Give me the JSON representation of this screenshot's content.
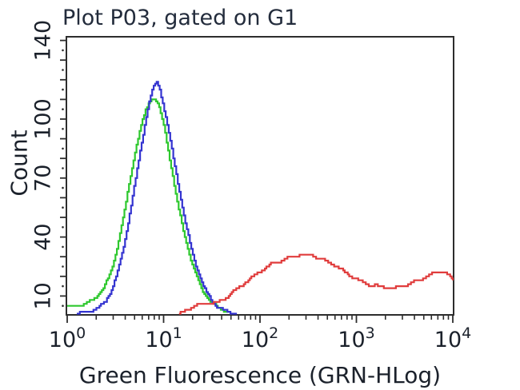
{
  "title": "Plot P03, gated on G1",
  "colors": {
    "background": "#ffffff",
    "axis": "#2d2d2d",
    "title_text": "#232c3c",
    "label_text": "#1b212b",
    "green_curve": "#2ec82e",
    "blue_curve": "#3434d0",
    "red_curve": "#e03c3c"
  },
  "axes": {
    "x": {
      "label": "Green Fluorescence (GRN-HLog)",
      "scale": "log10",
      "min": 1,
      "max": 10000,
      "major_ticks": [
        {
          "base": "10",
          "sup": "0",
          "exp": 0
        },
        {
          "base": "10",
          "sup": "1",
          "exp": 1
        },
        {
          "base": "10",
          "sup": "2",
          "exp": 2
        },
        {
          "base": "10",
          "sup": "3",
          "exp": 3
        },
        {
          "base": "10",
          "sup": "4",
          "exp": 4
        }
      ],
      "minor_tick_multiples": [
        2,
        3,
        4,
        5,
        6,
        7,
        8,
        9
      ]
    },
    "y": {
      "label": "Count",
      "scale": "linear",
      "min": 0,
      "max": 143,
      "labeled_ticks": [
        {
          "value": 10,
          "label": "10"
        },
        {
          "value": 40,
          "label": "40"
        },
        {
          "value": 70,
          "label": "70"
        },
        {
          "value": 100,
          "label": "100"
        },
        {
          "value": 140,
          "label": "140"
        }
      ],
      "minor_line_tick_step": 10,
      "minor_dot_tick_step": 5
    }
  },
  "chart_data": {
    "type": "line",
    "subtype": "flow-cytometry-histogram-overlay",
    "title": "Plot P03, gated on G1",
    "xlabel": "Green Fluorescence (GRN-HLog)",
    "ylabel": "Count",
    "x_scale": "log10",
    "x_range_log10": [
      0,
      4
    ],
    "ylim": [
      0,
      143
    ],
    "grid": false,
    "legend": "none",
    "point_format": "[log10_x, count]",
    "series": [
      {
        "name": "green-histogram",
        "color": "#2ec82e",
        "peak": {
          "x_approx": 8,
          "count": 111
        },
        "points": [
          [
            0.0,
            5
          ],
          [
            0.08,
            5
          ],
          [
            0.14,
            5.5
          ],
          [
            0.2,
            6.5
          ],
          [
            0.26,
            8
          ],
          [
            0.31,
            10
          ],
          [
            0.36,
            13
          ],
          [
            0.41,
            17.5
          ],
          [
            0.46,
            24
          ],
          [
            0.51,
            33
          ],
          [
            0.56,
            45
          ],
          [
            0.61,
            58
          ],
          [
            0.66,
            72
          ],
          [
            0.71,
            85
          ],
          [
            0.76,
            96
          ],
          [
            0.81,
            104
          ],
          [
            0.855,
            109
          ],
          [
            0.895,
            111
          ],
          [
            0.935,
            108
          ],
          [
            0.975,
            102
          ],
          [
            1.015,
            93
          ],
          [
            1.055,
            82
          ],
          [
            1.1,
            69
          ],
          [
            1.15,
            55
          ],
          [
            1.21,
            42
          ],
          [
            1.27,
            30
          ],
          [
            1.33,
            21
          ],
          [
            1.39,
            14
          ],
          [
            1.45,
            9
          ],
          [
            1.51,
            6
          ],
          [
            1.57,
            4
          ],
          [
            1.63,
            2.5
          ],
          [
            1.69,
            1.5
          ]
        ]
      },
      {
        "name": "blue-histogram",
        "color": "#3434d0",
        "peak": {
          "x_approx": 9,
          "count": 119
        },
        "points": [
          [
            0.1,
            1
          ],
          [
            0.18,
            1.5
          ],
          [
            0.25,
            2.5
          ],
          [
            0.32,
            4
          ],
          [
            0.39,
            7
          ],
          [
            0.45,
            12
          ],
          [
            0.51,
            20
          ],
          [
            0.57,
            32
          ],
          [
            0.63,
            47
          ],
          [
            0.69,
            64
          ],
          [
            0.75,
            82
          ],
          [
            0.81,
            99
          ],
          [
            0.86,
            111
          ],
          [
            0.9,
            117
          ],
          [
            0.925,
            119
          ],
          [
            0.96,
            115
          ],
          [
            1.0,
            106
          ],
          [
            1.05,
            94
          ],
          [
            1.1,
            80
          ],
          [
            1.16,
            64
          ],
          [
            1.22,
            48
          ],
          [
            1.28,
            35
          ],
          [
            1.35,
            23
          ],
          [
            1.42,
            14
          ],
          [
            1.49,
            8
          ],
          [
            1.56,
            4.5
          ],
          [
            1.63,
            2.5
          ],
          [
            1.7,
            1.5
          ],
          [
            1.76,
            1
          ]
        ]
      },
      {
        "name": "red-histogram",
        "color": "#e03c3c",
        "peak": {
          "x_approx": 300,
          "count": 31
        },
        "points": [
          [
            1.16,
            1
          ],
          [
            1.21,
            2
          ],
          [
            1.26,
            3.5
          ],
          [
            1.31,
            5
          ],
          [
            1.38,
            5.5
          ],
          [
            1.46,
            6
          ],
          [
            1.54,
            6.5
          ],
          [
            1.61,
            8
          ],
          [
            1.69,
            11
          ],
          [
            1.77,
            14
          ],
          [
            1.85,
            17
          ],
          [
            1.93,
            20
          ],
          [
            2.01,
            23
          ],
          [
            2.11,
            26
          ],
          [
            2.21,
            28
          ],
          [
            2.31,
            30
          ],
          [
            2.41,
            31
          ],
          [
            2.52,
            31
          ],
          [
            2.62,
            29
          ],
          [
            2.72,
            27
          ],
          [
            2.82,
            24
          ],
          [
            2.92,
            21
          ],
          [
            3.02,
            18
          ],
          [
            3.12,
            16
          ],
          [
            3.22,
            15
          ],
          [
            3.31,
            14.5
          ],
          [
            3.4,
            14
          ],
          [
            3.48,
            15
          ],
          [
            3.56,
            16.5
          ],
          [
            3.64,
            18
          ],
          [
            3.73,
            20
          ],
          [
            3.82,
            22
          ],
          [
            3.9,
            22.5
          ],
          [
            3.94,
            21
          ],
          [
            3.97,
            19.5
          ],
          [
            4.0,
            17.5
          ]
        ]
      }
    ]
  }
}
